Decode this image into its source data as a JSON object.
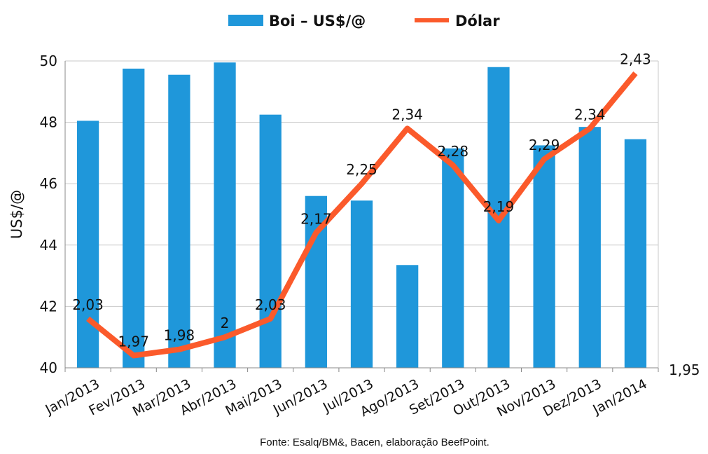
{
  "chart_data": {
    "type": "bar+line",
    "categories": [
      "Jan/2013",
      "Fev/2013",
      "Mar/2013",
      "Abr/2013",
      "Mai/2013",
      "Jun/2013",
      "Jul/2013",
      "Ago/2013",
      "Set/2013",
      "Out/2013",
      "Nov/2013",
      "Dez/2013",
      "Jan/2014"
    ],
    "series": [
      {
        "name": "Boi – US$/@",
        "type": "bar",
        "axis": "left",
        "color": "#1f97da",
        "values": [
          48.05,
          49.75,
          49.55,
          49.95,
          48.25,
          45.6,
          45.45,
          43.35,
          47.15,
          49.8,
          47.25,
          47.85,
          47.45
        ]
      },
      {
        "name": "Dólar",
        "type": "line",
        "axis": "right",
        "color": "#fb5a2b",
        "values": [
          2.03,
          1.97,
          1.98,
          2,
          2.03,
          2.17,
          2.25,
          2.34,
          2.28,
          2.19,
          2.29,
          2.34,
          2.43
        ],
        "labels": [
          "2,03",
          "1,97",
          "1,98",
          "2",
          "2,03",
          "2,17",
          "2,25",
          "2,34",
          "2,28",
          "2,19",
          "2,29",
          "2,34",
          "2,43"
        ]
      }
    ],
    "ylabel": "US$/@",
    "ylim": [
      40,
      50
    ],
    "yticks": [
      "40",
      "42",
      "44",
      "46",
      "48",
      "50"
    ],
    "y2lim": [
      1.95,
      2.45
    ],
    "y2ticks": [
      "1,95"
    ],
    "grid": true,
    "legend": "top-center",
    "source": "Fonte: Esalq/BM&, Bacen, elaboração BeefPoint."
  }
}
